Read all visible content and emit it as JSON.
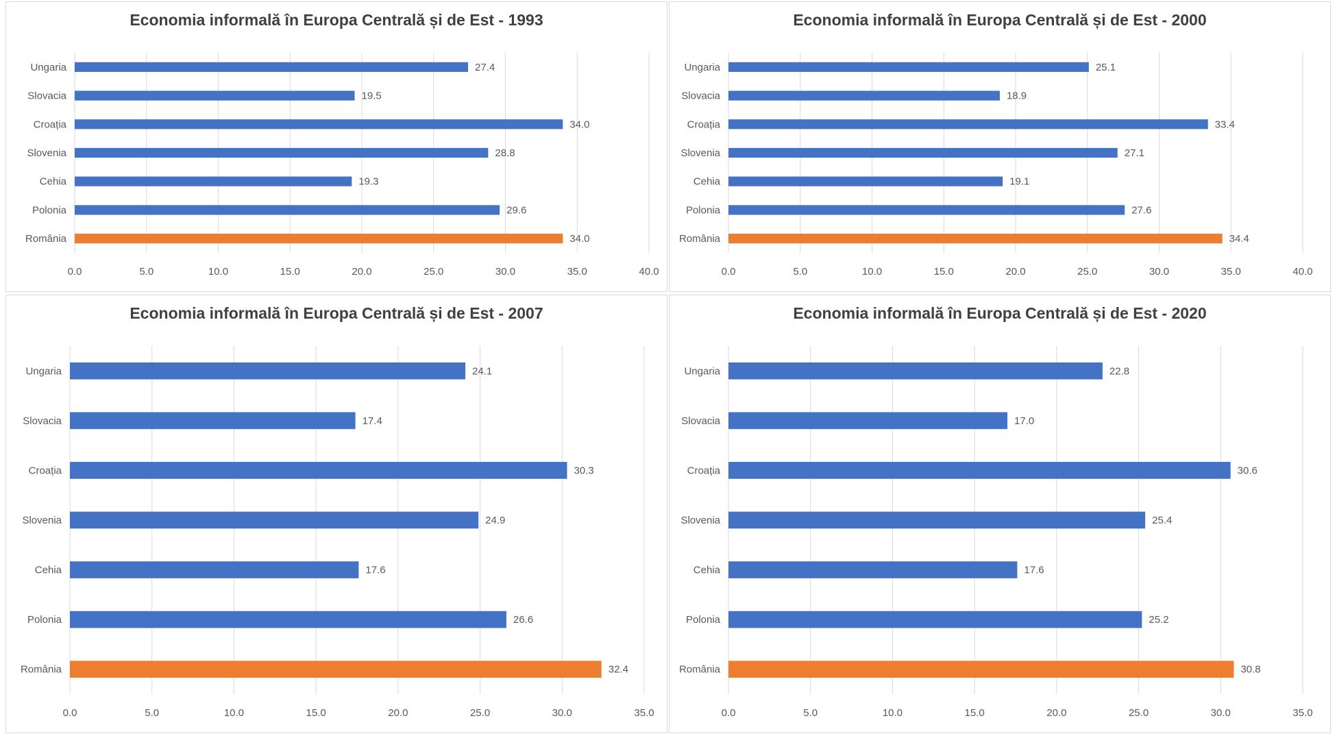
{
  "colors": {
    "default_bar": "#4472C4",
    "highlight_bar": "#ED7D31",
    "grid": "#d9d9d9",
    "text": "#595959",
    "title": "#404040"
  },
  "chart_data": [
    {
      "type": "bar",
      "orientation": "horizontal",
      "title": "Economia informală în Europa Centrală și de Est - 1993",
      "categories": [
        "Ungaria",
        "Slovacia",
        "Croația",
        "Slovenia",
        "Cehia",
        "Polonia",
        "România"
      ],
      "values": [
        27.4,
        19.5,
        34.0,
        28.8,
        19.3,
        29.6,
        34.0
      ],
      "highlight": "România",
      "xlim": [
        0,
        40
      ],
      "xticks": [
        "0.0",
        "5.0",
        "10.0",
        "15.0",
        "20.0",
        "25.0",
        "30.0",
        "35.0",
        "40.0"
      ],
      "grid": true
    },
    {
      "type": "bar",
      "orientation": "horizontal",
      "title": "Economia informală în Europa Centrală și de Est - 2000",
      "categories": [
        "Ungaria",
        "Slovacia",
        "Croația",
        "Slovenia",
        "Cehia",
        "Polonia",
        "România"
      ],
      "values": [
        25.1,
        18.9,
        33.4,
        27.1,
        19.1,
        27.6,
        34.4
      ],
      "highlight": "România",
      "xlim": [
        0,
        40
      ],
      "xticks": [
        "0.0",
        "5.0",
        "10.0",
        "15.0",
        "20.0",
        "25.0",
        "30.0",
        "35.0",
        "40.0"
      ],
      "grid": true
    },
    {
      "type": "bar",
      "orientation": "horizontal",
      "title": "Economia informală în Europa Centrală și de Est - 2007",
      "categories": [
        "Ungaria",
        "Slovacia",
        "Croația",
        "Slovenia",
        "Cehia",
        "Polonia",
        "România"
      ],
      "values": [
        24.1,
        17.4,
        30.3,
        24.9,
        17.6,
        26.6,
        32.4
      ],
      "highlight": "România",
      "xlim": [
        0,
        35
      ],
      "xticks": [
        "0.0",
        "5.0",
        "10.0",
        "15.0",
        "20.0",
        "25.0",
        "30.0",
        "35.0"
      ],
      "grid": true
    },
    {
      "type": "bar",
      "orientation": "horizontal",
      "title": "Economia informală în Europa Centrală și de Est - 2020",
      "categories": [
        "Ungaria",
        "Slovacia",
        "Croația",
        "Slovenia",
        "Cehia",
        "Polonia",
        "România"
      ],
      "values": [
        22.8,
        17.0,
        30.6,
        25.4,
        17.6,
        25.2,
        30.8
      ],
      "highlight": "România",
      "xlim": [
        0,
        35
      ],
      "xticks": [
        "0.0",
        "5.0",
        "10.0",
        "15.0",
        "20.0",
        "25.0",
        "30.0",
        "35.0"
      ],
      "grid": true
    }
  ]
}
